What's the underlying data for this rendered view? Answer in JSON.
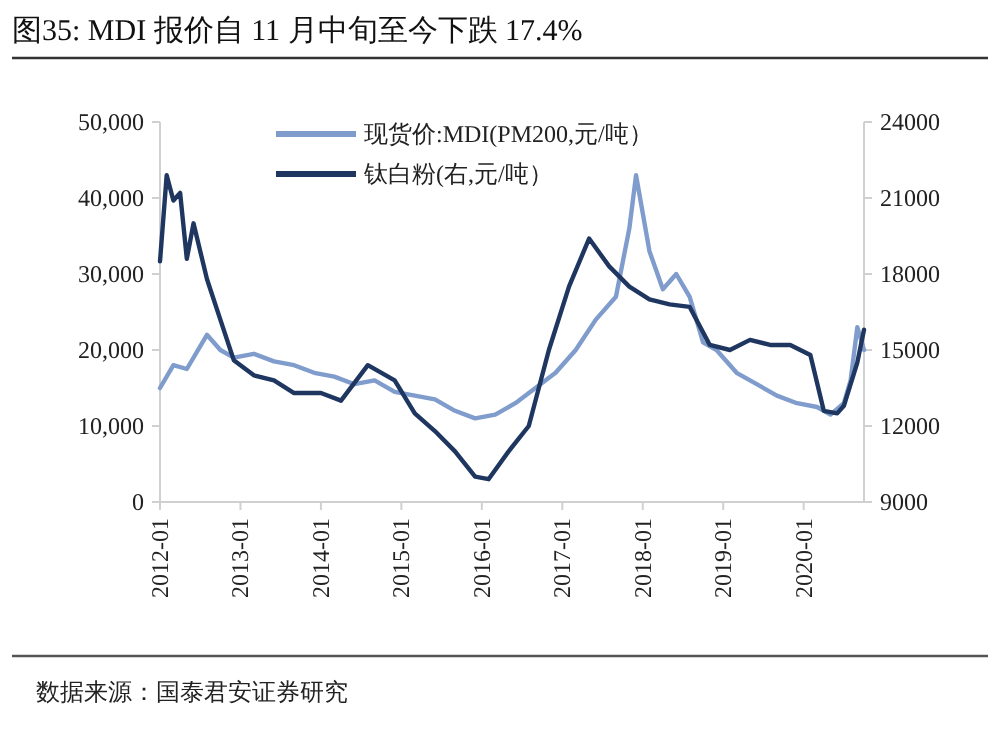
{
  "chart_data": {
    "type": "line",
    "title": "图35: MDI 报价自 11 月中旬至今下跌 17.4%",
    "annotations": [
      "数据来源：国泰君安证券研究"
    ],
    "xlim": [
      "2012-01",
      "2020-10"
    ],
    "xticks": [
      "2012-01",
      "2013-01",
      "2014-01",
      "2015-01",
      "2016-01",
      "2017-01",
      "2018-01",
      "2019-01",
      "2020-01"
    ],
    "ylim": [
      0,
      50000
    ],
    "yticks": [
      {
        "value": 0,
        "label": "0"
      },
      {
        "value": 10000,
        "label": "10,000"
      },
      {
        "value": 20000,
        "label": "20,000"
      },
      {
        "value": 30000,
        "label": "30,000"
      },
      {
        "value": 40000,
        "label": "40,000"
      },
      {
        "value": 50000,
        "label": "50,000"
      }
    ],
    "y2lim": [
      9000,
      24000
    ],
    "y2ticks": [
      9000,
      12000,
      15000,
      18000,
      21000,
      24000
    ],
    "grid": false,
    "legend": "top",
    "series": [
      {
        "name": "现货价:MDI(PM200,元/吨）",
        "color": "#7f9ccc",
        "x": [
          "2012-01",
          "2012-03",
          "2012-05",
          "2012-08",
          "2012-10",
          "2012-12",
          "2013-03",
          "2013-06",
          "2013-09",
          "2013-12",
          "2014-03",
          "2014-06",
          "2014-09",
          "2014-12",
          "2015-03",
          "2015-06",
          "2015-09",
          "2015-12",
          "2016-03",
          "2016-06",
          "2016-09",
          "2016-12",
          "2017-03",
          "2017-06",
          "2017-09",
          "2017-11",
          "2017-12",
          "2018-01",
          "2018-02",
          "2018-04",
          "2018-06",
          "2018-08",
          "2018-10",
          "2018-12",
          "2019-03",
          "2019-06",
          "2019-09",
          "2019-12",
          "2020-03",
          "2020-05",
          "2020-07",
          "2020-08",
          "2020-09",
          "2020-10"
        ],
        "values": [
          15000,
          18000,
          17500,
          22000,
          20000,
          19000,
          19500,
          18500,
          18000,
          17000,
          16500,
          15500,
          16000,
          14500,
          14000,
          13500,
          12000,
          11000,
          11500,
          13000,
          15000,
          17000,
          20000,
          24000,
          27000,
          36000,
          43000,
          38000,
          33000,
          28000,
          30000,
          27000,
          21000,
          20000,
          17000,
          15500,
          14000,
          13000,
          12500,
          11500,
          13000,
          16000,
          23000,
          20000
        ]
      },
      {
        "name": "钛白粉(右,元/吨）",
        "color": "#1f3760",
        "axis": "y2",
        "x": [
          "2012-01",
          "2012-02",
          "2012-03",
          "2012-04",
          "2012-05",
          "2012-06",
          "2012-08",
          "2012-10",
          "2012-12",
          "2013-03",
          "2013-06",
          "2013-09",
          "2014-01",
          "2014-04",
          "2014-08",
          "2014-12",
          "2015-03",
          "2015-06",
          "2015-09",
          "2015-12",
          "2016-02",
          "2016-05",
          "2016-08",
          "2016-11",
          "2017-02",
          "2017-05",
          "2017-08",
          "2017-11",
          "2018-02",
          "2018-05",
          "2018-08",
          "2018-11",
          "2019-02",
          "2019-05",
          "2019-08",
          "2019-11",
          "2020-02",
          "2020-04",
          "2020-06",
          "2020-07",
          "2020-09",
          "2020-10"
        ],
        "values": [
          18500,
          21900,
          20900,
          21200,
          18600,
          20000,
          17800,
          16200,
          14600,
          14000,
          13800,
          13300,
          13300,
          13000,
          14400,
          13800,
          12500,
          11800,
          11000,
          10000,
          9900,
          11000,
          12000,
          15000,
          17500,
          19400,
          18300,
          17500,
          17000,
          16800,
          16700,
          15200,
          15000,
          15400,
          15200,
          15200,
          14800,
          12600,
          12500,
          12800,
          14500,
          15800
        ]
      }
    ]
  }
}
